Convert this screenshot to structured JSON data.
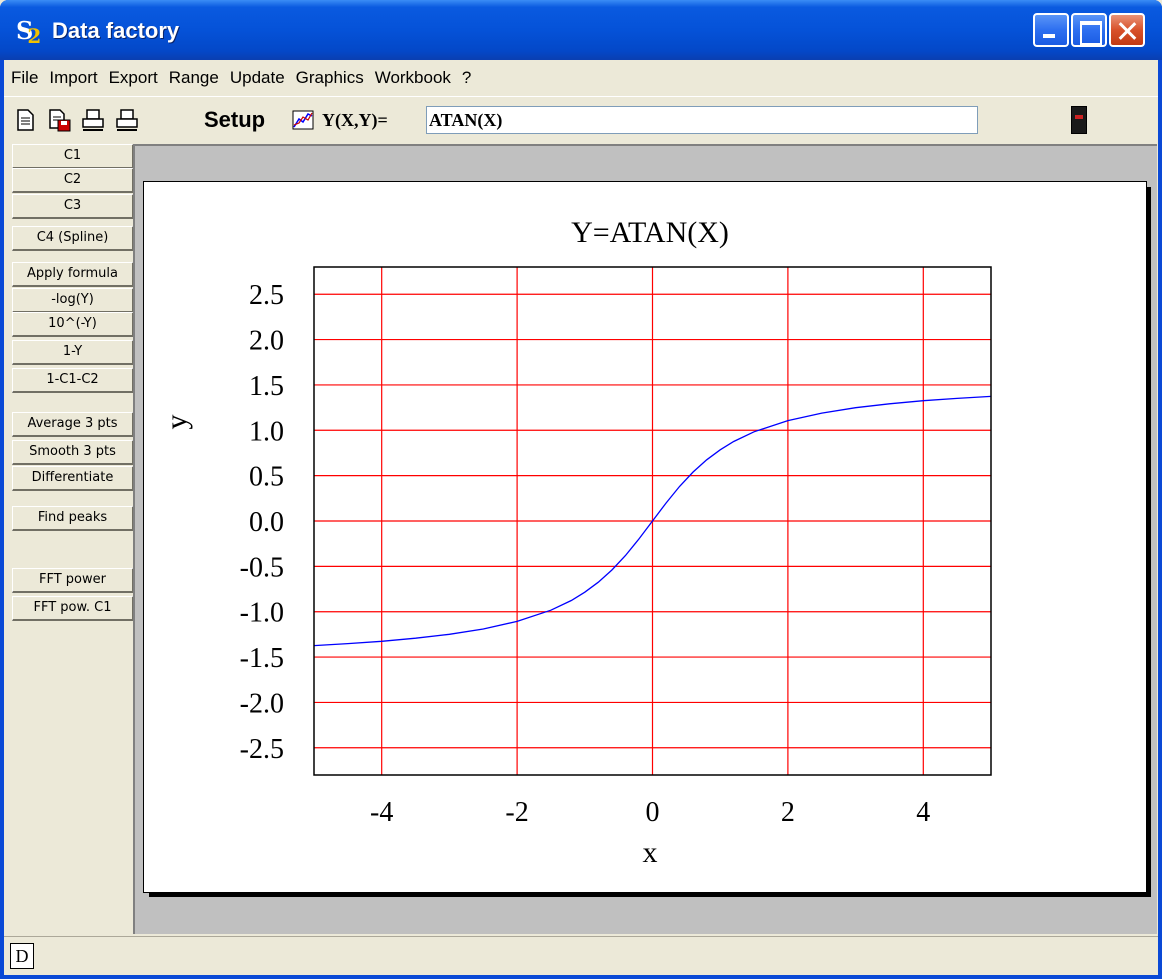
{
  "window": {
    "title": "Data factory",
    "app_icon_s": "S",
    "app_icon_2": "2"
  },
  "menu": [
    "File",
    "Import",
    "Export",
    "Range",
    "Update",
    "Graphics",
    "Workbook",
    "?"
  ],
  "toolbar": {
    "setup_label": "Setup",
    "formula_label": "Y(X,Y)=",
    "formula_value": "ATAN(X)"
  },
  "side_buttons": [
    "C1",
    "C2",
    "C3",
    "C4 (Spline)",
    "Apply formula",
    "-log(Y)",
    "10^(-Y)",
    "1-Y",
    "1-C1-C2",
    "Average 3 pts",
    "Smooth 3 pts",
    "Differentiate",
    "Find peaks",
    "FFT power",
    "FFT pow. C1"
  ],
  "status": {
    "d_label": "D"
  },
  "colors": {
    "grid": "#ff0000",
    "curve": "#0000ff",
    "title_blue": "#0a49d6"
  },
  "chart_data": {
    "type": "line",
    "title": "Y=ATAN(X)",
    "xlabel": "x",
    "ylabel": "y",
    "xlim": [
      -5,
      5
    ],
    "ylim": [
      -2.8,
      2.8
    ],
    "xticks": [
      -4,
      -2,
      0,
      2,
      4
    ],
    "xtick_labels": [
      "-4",
      "-2",
      "0",
      "2",
      "4"
    ],
    "yticks": [
      2.5,
      2.0,
      1.5,
      1.0,
      0.5,
      0.0,
      -0.5,
      -1.0,
      -1.5,
      -2.0,
      -2.5
    ],
    "ytick_labels": [
      "2.5",
      "2.0",
      "1.5",
      "1.0",
      "0.5",
      "0.0",
      "-0.5",
      "-1.0",
      "-1.5",
      "-2.0",
      "-2.5"
    ],
    "grid": true,
    "series": [
      {
        "x": [
          -5,
          -4.5,
          -4,
          -3.5,
          -3,
          -2.5,
          -2,
          -1.5,
          -1.2,
          -1,
          -0.8,
          -0.6,
          -0.4,
          -0.2,
          0,
          0.2,
          0.4,
          0.6,
          0.8,
          1,
          1.2,
          1.5,
          2,
          2.5,
          3,
          3.5,
          4,
          4.5,
          5
        ],
        "y": [
          -1.373,
          -1.352,
          -1.326,
          -1.292,
          -1.249,
          -1.19,
          -1.107,
          -0.983,
          -0.876,
          -0.785,
          -0.675,
          -0.54,
          -0.381,
          -0.197,
          0,
          0.197,
          0.381,
          0.54,
          0.675,
          0.785,
          0.876,
          0.983,
          1.107,
          1.19,
          1.249,
          1.292,
          1.326,
          1.352,
          1.373
        ]
      }
    ]
  }
}
